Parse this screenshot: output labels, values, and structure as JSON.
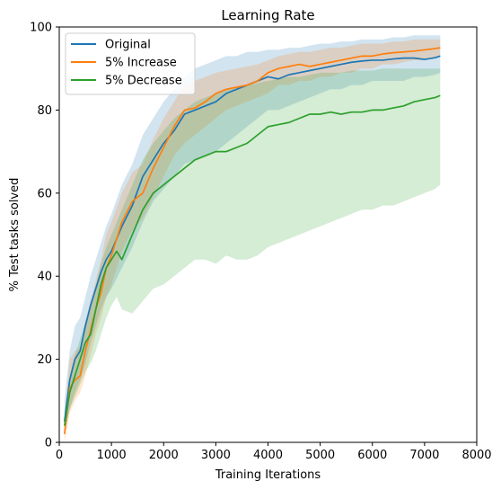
{
  "chart_data": {
    "type": "line",
    "title": "Learning Rate",
    "xlabel": "Training Iterations",
    "ylabel": "% Test tasks solved",
    "xlim": [
      0,
      8000
    ],
    "ylim": [
      0,
      100
    ],
    "xticks": [
      0,
      1000,
      2000,
      3000,
      4000,
      5000,
      6000,
      7000,
      8000
    ],
    "yticks": [
      0,
      20,
      40,
      60,
      80,
      100
    ],
    "grid": false,
    "legend_position": "top-left",
    "series": [
      {
        "name": "Original",
        "color": "#1f77b4",
        "x": [
          100,
          200,
          300,
          400,
          500,
          600,
          700,
          800,
          900,
          1000,
          1200,
          1400,
          1600,
          1800,
          2000,
          2200,
          2400,
          2600,
          2800,
          3000,
          3200,
          3400,
          3600,
          3800,
          4000,
          4200,
          4400,
          4600,
          4800,
          5000,
          5200,
          5400,
          5600,
          5800,
          6000,
          6200,
          6400,
          6600,
          6800,
          7000,
          7200,
          7300
        ],
        "y": [
          5,
          15,
          20,
          22,
          28,
          33,
          37,
          41,
          44,
          46,
          52,
          57,
          64,
          68,
          72,
          75,
          79,
          80,
          81,
          82,
          84,
          85,
          86,
          87,
          88,
          87.5,
          88.5,
          89,
          89.5,
          90,
          90.5,
          91,
          91.5,
          91.8,
          92,
          92,
          92.3,
          92.5,
          92.5,
          92.2,
          92.6,
          93
        ],
        "lower": [
          2,
          8,
          12,
          15,
          19,
          24,
          28,
          32,
          35,
          37,
          42,
          47,
          53,
          58,
          61,
          64,
          67,
          68,
          69,
          70,
          72,
          74,
          76,
          78,
          80,
          80,
          81,
          82,
          83,
          84,
          85,
          85,
          86,
          86,
          87,
          87,
          87,
          87,
          88,
          88,
          88.5,
          89
        ],
        "upper": [
          10,
          22,
          28,
          30,
          35,
          40,
          44,
          48,
          52,
          55,
          62,
          67,
          74,
          78,
          82,
          85,
          88,
          90,
          91,
          92,
          93,
          93,
          94,
          94,
          94.5,
          94.5,
          95,
          95,
          95.5,
          96,
          96,
          96.5,
          96.5,
          97,
          97,
          97,
          97.5,
          97.5,
          98,
          98,
          98,
          98
        ]
      },
      {
        "name": "5% Increase",
        "color": "#ff7f0e",
        "x": [
          100,
          200,
          300,
          400,
          500,
          600,
          700,
          800,
          900,
          1000,
          1200,
          1400,
          1600,
          1800,
          2000,
          2200,
          2400,
          2600,
          2800,
          3000,
          3200,
          3400,
          3600,
          3800,
          4000,
          4200,
          4400,
          4600,
          4800,
          5000,
          5200,
          5400,
          5600,
          5800,
          6000,
          6200,
          6400,
          6600,
          6800,
          7000,
          7200,
          7300
        ],
        "y": [
          2,
          13,
          15,
          16,
          22,
          27,
          32,
          36,
          42,
          45,
          53,
          58,
          60,
          66,
          71,
          76,
          80,
          80.5,
          82,
          84,
          85,
          85.5,
          86,
          87,
          89,
          90,
          90.5,
          91,
          90.5,
          91,
          91.5,
          92,
          92.5,
          93,
          93,
          93.5,
          93.8,
          94,
          94.2,
          94.5,
          94.8,
          95
        ],
        "lower": [
          0,
          7,
          10,
          12,
          16,
          21,
          26,
          30,
          35,
          38,
          46,
          51,
          54,
          59,
          64,
          69,
          72,
          74,
          76,
          78,
          80,
          81,
          82,
          83,
          84,
          86,
          86,
          87,
          87,
          88,
          88,
          89,
          89,
          90,
          90,
          91,
          91,
          91.5,
          92,
          92,
          92.5,
          93
        ],
        "upper": [
          6,
          20,
          22,
          23,
          29,
          34,
          39,
          44,
          50,
          53,
          60,
          65,
          67,
          73,
          78,
          82,
          86,
          87,
          88,
          89,
          89.5,
          90,
          90.5,
          91,
          92,
          93,
          93.5,
          94,
          94,
          94.5,
          95,
          95,
          95.5,
          96,
          96,
          96,
          96.5,
          96.5,
          97,
          97,
          97,
          97
        ]
      },
      {
        "name": "5% Decrease",
        "color": "#2ca02c",
        "x": [
          100,
          200,
          300,
          400,
          500,
          600,
          700,
          800,
          900,
          1000,
          1100,
          1200,
          1400,
          1600,
          1800,
          2000,
          2200,
          2400,
          2600,
          2800,
          3000,
          3200,
          3400,
          3600,
          3800,
          4000,
          4200,
          4400,
          4600,
          4800,
          5000,
          5200,
          5400,
          5600,
          5800,
          6000,
          6200,
          6400,
          6600,
          6800,
          7000,
          7200,
          7300
        ],
        "y": [
          4,
          12,
          16,
          20,
          24,
          26,
          32,
          38,
          42,
          44,
          46,
          44,
          50,
          56,
          60,
          62,
          64,
          66,
          68,
          69,
          70,
          70,
          71,
          72,
          74,
          76,
          76.5,
          77,
          78,
          79,
          79,
          79.5,
          79,
          79.5,
          79.5,
          80,
          80,
          80.5,
          81,
          82,
          82.5,
          83,
          83.5
        ],
        "lower": [
          2,
          8,
          11,
          14,
          17,
          19,
          22,
          26,
          30,
          33,
          35,
          32,
          31,
          34,
          37,
          38,
          40,
          42,
          44,
          44,
          43,
          45,
          44,
          44,
          45,
          47,
          48,
          49,
          50,
          51,
          52,
          53,
          54,
          55,
          56,
          56,
          57,
          57,
          58,
          59,
          60,
          61,
          62
        ],
        "upper": [
          7,
          16,
          21,
          25,
          29,
          33,
          38,
          43,
          47,
          50,
          53,
          56,
          62,
          68,
          72,
          75,
          78,
          80,
          82,
          83,
          84,
          85,
          85.5,
          86,
          86.5,
          87,
          87.5,
          88,
          88,
          88.5,
          89,
          89,
          89,
          89.5,
          89.5,
          89.5,
          90,
          90,
          90,
          90,
          90,
          90,
          90
        ]
      }
    ]
  }
}
